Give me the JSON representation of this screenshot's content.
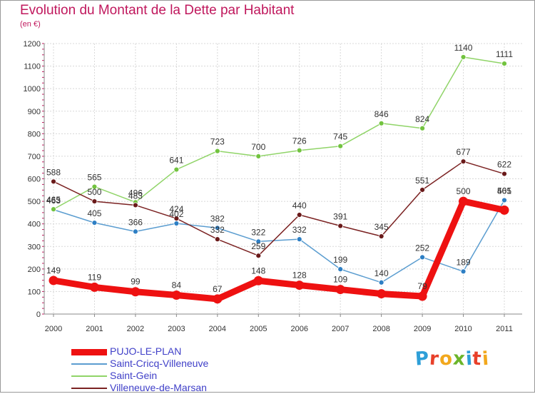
{
  "header": {
    "title": "Evolution du Montant de la Dette par Habitant",
    "subtitle": "(en €)"
  },
  "logo": {
    "text": "Proxiti",
    "letters": [
      "P",
      "r",
      "o",
      "x",
      "i",
      "t",
      "i"
    ],
    "letter_colors": [
      "#2e9fd8",
      "#e8402a",
      "#f2a81d",
      "#6bb52a",
      "#2e9fd8",
      "#e8402a",
      "#f2a81d"
    ]
  },
  "chart_data": {
    "type": "line",
    "x": [
      "2000",
      "2001",
      "2002",
      "2003",
      "2004",
      "2005",
      "2006",
      "2007",
      "2008",
      "2009",
      "2010",
      "2011"
    ],
    "ylim": [
      0,
      1200
    ],
    "yticks": [
      0,
      100,
      200,
      300,
      400,
      500,
      600,
      700,
      800,
      900,
      1000,
      1100,
      1200
    ],
    "grid": true,
    "legend_position": "bottom-left",
    "series": [
      {
        "name": "PUJO-LE-PLAN",
        "color": "#ee1111",
        "values": [
          149,
          119,
          99,
          84,
          67,
          148,
          128,
          109,
          90,
          79,
          500,
          461
        ],
        "labels": [
          "149",
          "119",
          "99",
          "84",
          "67",
          "148",
          "128",
          "109",
          "",
          "79",
          "500",
          ""
        ],
        "bold": true
      },
      {
        "name": "Saint-Cricq-Villeneuve",
        "color": "#5b9dd0",
        "marker_color": "#2e7fc4",
        "values": [
          463,
          405,
          366,
          402,
          382,
          322,
          332,
          199,
          140,
          252,
          189,
          505
        ],
        "labels": [
          "463",
          "405",
          "366",
          "402",
          "382",
          "322",
          "332",
          "199",
          "140",
          "252",
          "189",
          "505"
        ]
      },
      {
        "name": "Saint-Gein",
        "color": "#90d468",
        "marker_color": "#72c33f",
        "values": [
          465,
          565,
          496,
          641,
          723,
          700,
          726,
          745,
          846,
          824,
          1140,
          1111
        ],
        "labels": [
          "465",
          "565",
          "496",
          "641",
          "723",
          "700",
          "726",
          "745",
          "846",
          "824",
          "1140",
          "1111"
        ]
      },
      {
        "name": "Villeneuve-de-Marsan",
        "color": "#7b2222",
        "marker_color": "#6a1a1a",
        "values": [
          588,
          500,
          483,
          424,
          332,
          259,
          440,
          391,
          345,
          551,
          677,
          622
        ],
        "labels": [
          "588",
          "500",
          "483",
          "424",
          "332",
          "259",
          "440",
          "391",
          "345",
          "551",
          "677",
          "622"
        ]
      }
    ],
    "extra_labels": [
      {
        "series": 1,
        "text": "461",
        "x_index": 11
      }
    ]
  }
}
